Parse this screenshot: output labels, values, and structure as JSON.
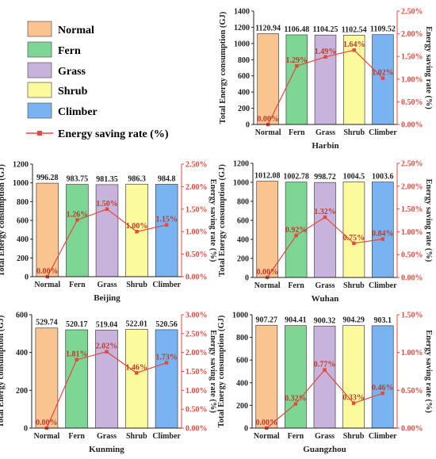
{
  "legend": {
    "items": [
      {
        "label": "Normal",
        "type": "bar",
        "color": "#FAC491"
      },
      {
        "label": "Fern",
        "type": "bar",
        "color": "#7DD694"
      },
      {
        "label": "Grass",
        "type": "bar",
        "color": "#C7B3DB"
      },
      {
        "label": "Shrub",
        "type": "bar",
        "color": "#FBFB9E"
      },
      {
        "label": "Climber",
        "type": "bar",
        "color": "#79B3F2"
      },
      {
        "label": "Energy saving rate (%)",
        "type": "line",
        "color": "#E8473C"
      }
    ]
  },
  "chart_data": [
    {
      "type": "bar+line",
      "title": "Harbin",
      "categories": [
        "Normal",
        "Fern",
        "Grass",
        "Shrub",
        "Climber"
      ],
      "bar_values": [
        1120.94,
        1106.48,
        1104.25,
        1102.54,
        1109.52
      ],
      "bar_labels": [
        "1120.94",
        "1106.48",
        "1104.25",
        "1102.54",
        "1109.52"
      ],
      "line_values": [
        0.0,
        1.29,
        1.49,
        1.64,
        1.02
      ],
      "line_labels": [
        "0.00%",
        "1.29%",
        "1.49%",
        "1.64%",
        "1.02%"
      ],
      "ylabel_left": "Total Energy consumption (GJ)",
      "ylabel_right": "Energy saving rate (%)",
      "ylim_left": [
        0,
        1400
      ],
      "yticks_left": [
        0,
        200,
        400,
        600,
        800,
        1000,
        1200,
        1400
      ],
      "ylim_right": [
        0,
        2.5
      ],
      "yticks_right": [
        "0.00%",
        "0.50%",
        "1.00%",
        "1.50%",
        "2.00%",
        "2.50%"
      ]
    },
    {
      "type": "bar+line",
      "title": "Beijing",
      "categories": [
        "Normal",
        "Fern",
        "Grass",
        "Shrub",
        "Climber"
      ],
      "bar_values": [
        996.28,
        983.75,
        981.35,
        986.3,
        984.8
      ],
      "bar_labels": [
        "996.28",
        "983.75",
        "981.35",
        "986.3",
        "984.8"
      ],
      "line_values": [
        0.0,
        1.26,
        1.5,
        1.0,
        1.15
      ],
      "line_labels": [
        "0.00%",
        "1.26%",
        "1.50%",
        "1.00%",
        "1.15%"
      ],
      "ylabel_left": "Total Energy consumption (GJ)",
      "ylabel_right": "Energy saving rate (%)",
      "ylim_left": [
        0,
        1200
      ],
      "yticks_left": [
        0,
        200,
        400,
        600,
        800,
        1000,
        1200
      ],
      "ylim_right": [
        0,
        2.5
      ],
      "yticks_right": [
        "0.00%",
        "0.50%",
        "1.00%",
        "1.50%",
        "2.00%",
        "2.50%"
      ]
    },
    {
      "type": "bar+line",
      "title": "Wuhan",
      "categories": [
        "Normal",
        "Fern",
        "Grass",
        "Shrub",
        "Climber"
      ],
      "bar_values": [
        1012.08,
        1002.78,
        998.72,
        1004.5,
        1003.6
      ],
      "bar_labels": [
        "1012.08",
        "1002.78",
        "998.72",
        "1004.5",
        "1003.6"
      ],
      "line_values": [
        0.0,
        0.92,
        1.32,
        0.75,
        0.84
      ],
      "line_labels": [
        "0.00%",
        "0.92%",
        "1.32%",
        "0.75%",
        "0.84%"
      ],
      "ylabel_left": "Total Energy consumption (GJ)",
      "ylabel_right": "Energy saving rate (%)",
      "ylim_left": [
        0,
        1200
      ],
      "yticks_left": [
        0,
        200,
        400,
        600,
        800,
        1000,
        1200
      ],
      "ylim_right": [
        0,
        2.5
      ],
      "yticks_right": [
        "0.00%",
        "0.50%",
        "1.00%",
        "1.50%",
        "2.00%",
        "2.50%"
      ]
    },
    {
      "type": "bar+line",
      "title": "Kunming",
      "categories": [
        "Normal",
        "Fern",
        "Grass",
        "Shrub",
        "Climber"
      ],
      "bar_values": [
        529.74,
        520.17,
        519.04,
        522.01,
        520.56
      ],
      "bar_labels": [
        "529.74",
        "520.17",
        "519.04",
        "522.01",
        "520.56"
      ],
      "line_values": [
        0.0,
        1.81,
        2.02,
        1.46,
        1.73
      ],
      "line_labels": [
        "0.00%",
        "1.81%",
        "2.02%",
        "1.46%",
        "1.73%"
      ],
      "ylabel_left": "Total Energy consumption (GJ)",
      "ylabel_right": "Energy saving rate (%)",
      "ylim_left": [
        0,
        600
      ],
      "yticks_left": [
        0,
        200,
        400,
        600
      ],
      "ylim_right": [
        0,
        3.0
      ],
      "yticks_right": [
        "0.00%",
        "0.50%",
        "1.00%",
        "1.50%",
        "2.00%",
        "2.50%",
        "3.00%"
      ]
    },
    {
      "type": "bar+line",
      "title": "Guangzhou",
      "categories": [
        "Normal",
        "Fern",
        "Grass",
        "Shrub",
        "Climber"
      ],
      "bar_values": [
        907.27,
        904.41,
        900.32,
        904.29,
        903.1
      ],
      "bar_labels": [
        "907.27",
        "904.41",
        "900.32",
        "904.29",
        "903.1"
      ],
      "line_values": [
        0.0,
        0.32,
        0.77,
        0.33,
        0.46
      ],
      "line_labels": [
        "0.00%",
        "0.32%",
        "0.77%",
        "0.33%",
        "0.46%"
      ],
      "ylabel_left": "Total Energy consumption (GJ)",
      "ylabel_right": "Energy saving rate (%)",
      "ylim_left": [
        0,
        1000
      ],
      "yticks_left": [
        0,
        200,
        400,
        600,
        800,
        1000
      ],
      "ylim_right": [
        0,
        1.5
      ],
      "yticks_right": [
        "0.00%",
        "0.50%",
        "1.00%",
        "1.50%"
      ]
    }
  ]
}
